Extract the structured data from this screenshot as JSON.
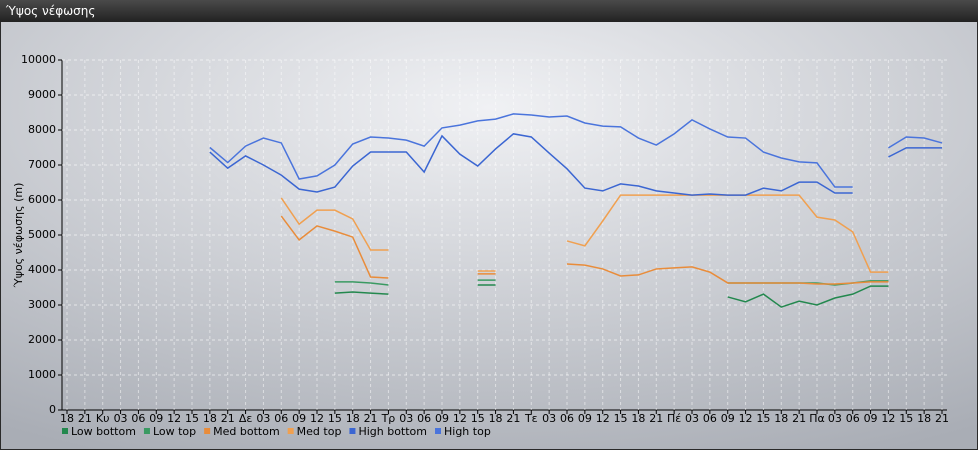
{
  "chart_data": {
    "type": "line",
    "title": "Ύψος νέφωσης",
    "y_label": "Ύψος νέφωσης (m)",
    "categories": [
      "18",
      "21",
      "Κυ",
      "03",
      "06",
      "09",
      "12",
      "15",
      "18",
      "21",
      "Δε",
      "03",
      "06",
      "09",
      "12",
      "15",
      "18",
      "21",
      "Τρ",
      "03",
      "06",
      "09",
      "12",
      "15",
      "18",
      "21",
      "Τε",
      "03",
      "06",
      "09",
      "12",
      "15",
      "18",
      "21",
      "Πέ",
      "03",
      "06",
      "09",
      "12",
      "15",
      "18",
      "21",
      "Πα",
      "03",
      "06",
      "09",
      "12",
      "15",
      "18",
      "21"
    ],
    "ylim": [
      0,
      10000
    ],
    "yticks": [
      0,
      1000,
      2000,
      3000,
      4000,
      5000,
      6000,
      7000,
      8000,
      9000,
      10000
    ],
    "grid": true,
    "legend": "bottom",
    "series": [
      {
        "name": "Low bottom",
        "color": "#23884e",
        "values": [
          null,
          null,
          null,
          null,
          null,
          null,
          null,
          null,
          null,
          null,
          null,
          null,
          null,
          null,
          null,
          3340,
          3370,
          3340,
          3310,
          null,
          null,
          null,
          null,
          3570,
          3570,
          null,
          null,
          null,
          null,
          null,
          null,
          null,
          null,
          null,
          null,
          null,
          null,
          3230,
          3090,
          3310,
          2940,
          3110,
          3000,
          3200,
          3310,
          3540,
          3540,
          null,
          null,
          null
        ]
      },
      {
        "name": "Low top",
        "color": "#3a9a62",
        "values": [
          null,
          null,
          null,
          null,
          null,
          null,
          null,
          null,
          null,
          null,
          null,
          null,
          null,
          null,
          null,
          3660,
          3660,
          3630,
          3570,
          null,
          null,
          null,
          null,
          3710,
          3710,
          null,
          null,
          null,
          null,
          null,
          null,
          null,
          null,
          null,
          null,
          null,
          null,
          3630,
          3630,
          3630,
          3630,
          3630,
          3630,
          3570,
          3630,
          3690,
          3690,
          null,
          null,
          null
        ]
      },
      {
        "name": "Med bottom",
        "color": "#e98c3a",
        "values": [
          null,
          null,
          null,
          null,
          null,
          null,
          null,
          null,
          null,
          null,
          null,
          null,
          5540,
          4860,
          5260,
          5110,
          4940,
          3800,
          3770,
          null,
          null,
          null,
          null,
          3890,
          3890,
          null,
          null,
          null,
          4170,
          4140,
          4030,
          3830,
          3860,
          4030,
          4060,
          4090,
          3940,
          3630,
          3630,
          3630,
          3630,
          3630,
          3600,
          3600,
          3630,
          3660,
          3660,
          null,
          null,
          null
        ]
      },
      {
        "name": "Med top",
        "color": "#f0a050",
        "values": [
          null,
          null,
          null,
          null,
          null,
          null,
          null,
          null,
          null,
          null,
          null,
          null,
          6060,
          5310,
          5710,
          5710,
          5460,
          4570,
          4570,
          null,
          null,
          null,
          null,
          3970,
          3970,
          null,
          null,
          null,
          4830,
          4690,
          5400,
          6140,
          6140,
          6140,
          6140,
          6140,
          6140,
          6140,
          6140,
          6140,
          6140,
          6140,
          5510,
          5430,
          5090,
          3940,
          3940,
          null,
          null,
          null
        ]
      },
      {
        "name": "High bottom",
        "color": "#3b66d2",
        "values": [
          null,
          null,
          null,
          null,
          null,
          null,
          null,
          null,
          7370,
          6910,
          7260,
          7000,
          6710,
          6310,
          6230,
          6370,
          6970,
          7370,
          7370,
          7370,
          6800,
          7830,
          7310,
          6970,
          7460,
          7890,
          7800,
          7340,
          6890,
          6340,
          6260,
          6460,
          6400,
          6260,
          6200,
          6140,
          6170,
          6140,
          6140,
          6340,
          6260,
          6510,
          6510,
          6200,
          6200,
          null,
          7230,
          7490,
          7490,
          7490
        ]
      },
      {
        "name": "High top",
        "color": "#4a74dc",
        "values": [
          null,
          null,
          null,
          null,
          null,
          null,
          null,
          null,
          7500,
          7070,
          7540,
          7770,
          7630,
          6600,
          6690,
          7000,
          7600,
          7800,
          7770,
          7710,
          7540,
          8060,
          8140,
          8260,
          8310,
          8460,
          8430,
          8370,
          8400,
          8200,
          8110,
          8090,
          7770,
          7570,
          7890,
          8290,
          8030,
          7800,
          7770,
          7370,
          7200,
          7090,
          7060,
          6370,
          6370,
          null,
          7490,
          7800,
          7770,
          7630
        ]
      }
    ]
  }
}
